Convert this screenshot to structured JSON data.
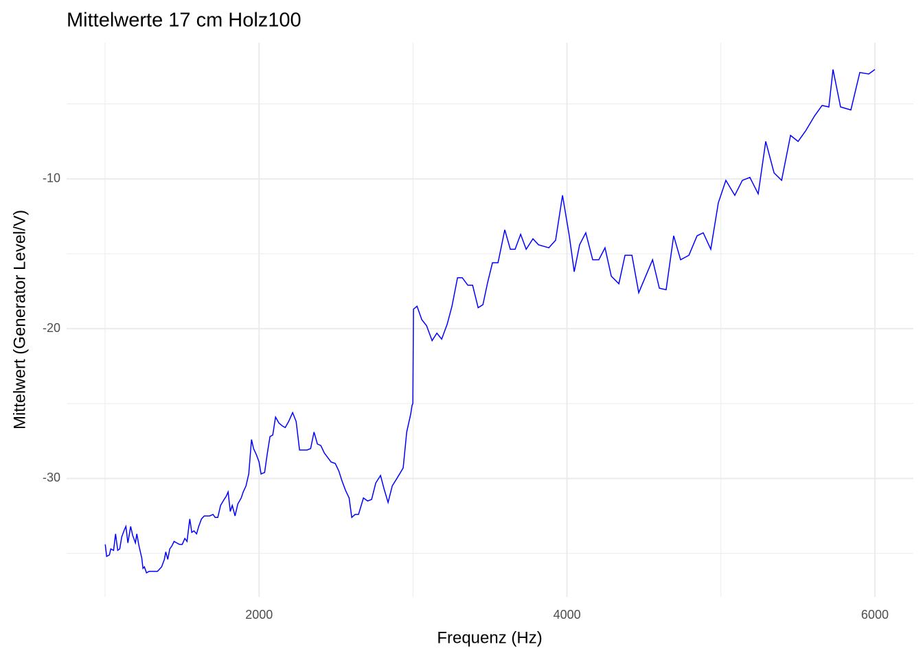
{
  "chart_data": {
    "type": "line",
    "title": "Mittelwerte 17 cm Holz100",
    "x_label": "Frequenz (Hz)",
    "y_label": "Mittelwert (Generator Level/V)",
    "xlim": [
      750,
      6250
    ],
    "ylim": [
      -37.9,
      -0.9
    ],
    "xticks": [
      2000,
      4000,
      6000
    ],
    "yticks": [
      -30,
      -20,
      -10
    ],
    "x_minor_grid": [
      1000,
      3000,
      5000
    ],
    "y_minor_grid": [
      -35,
      -25,
      -15,
      -5
    ],
    "grid": true,
    "x": [
      1001,
      1010,
      1028,
      1037,
      1055,
      1068,
      1082,
      1095,
      1108,
      1126,
      1135,
      1148,
      1166,
      1179,
      1197,
      1206,
      1220,
      1238,
      1246,
      1255,
      1269,
      1286,
      1304,
      1340,
      1367,
      1385,
      1394,
      1407,
      1420,
      1434,
      1448,
      1465,
      1483,
      1501,
      1518,
      1532,
      1550,
      1563,
      1577,
      1594,
      1608,
      1626,
      1644,
      1661,
      1679,
      1701,
      1715,
      1732,
      1750,
      1773,
      1786,
      1799,
      1813,
      1826,
      1844,
      1862,
      1884,
      1897,
      1915,
      1933,
      1951,
      1964,
      1982,
      2000,
      2013,
      2036,
      2054,
      2071,
      2089,
      2107,
      2129,
      2152,
      2170,
      2192,
      2218,
      2241,
      2263,
      2285,
      2312,
      2335,
      2357,
      2379,
      2401,
      2424,
      2446,
      2468,
      2495,
      2518,
      2540,
      2562,
      2585,
      2602,
      2624,
      2646,
      2678,
      2705,
      2731,
      2758,
      2789,
      2812,
      2838,
      2865,
      2901,
      2936,
      2959,
      2985,
      2994,
      2999,
      3003,
      3026,
      3057,
      3088,
      3124,
      3155,
      3186,
      3222,
      3253,
      3289,
      3320,
      3356,
      3387,
      3423,
      3454,
      3485,
      3516,
      3552,
      3596,
      3632,
      3663,
      3699,
      3735,
      3779,
      3815,
      3882,
      3926,
      3971,
      4015,
      4047,
      4082,
      4122,
      4167,
      4207,
      4247,
      4288,
      4337,
      4377,
      4422,
      4466,
      4511,
      4556,
      4600,
      4644,
      4693,
      4738,
      4792,
      4845,
      4885,
      4934,
      4983,
      5032,
      5090,
      5139,
      5188,
      5242,
      5291,
      5345,
      5394,
      5452,
      5501,
      5550,
      5608,
      5657,
      5701,
      5728,
      5777,
      5844,
      5902,
      5960,
      6000
    ],
    "series": [
      {
        "color": "#0000ff",
        "values": [
          -34.4,
          -35.2,
          -35.1,
          -34.7,
          -34.8,
          -33.7,
          -34.8,
          -34.7,
          -33.9,
          -33.4,
          -33.2,
          -34.3,
          -33.2,
          -33.8,
          -34.3,
          -33.7,
          -34.5,
          -35.3,
          -36.0,
          -35.9,
          -36.3,
          -36.2,
          -36.2,
          -36.2,
          -35.9,
          -35.4,
          -34.9,
          -35.4,
          -34.7,
          -34.5,
          -34.2,
          -34.3,
          -34.4,
          -34.4,
          -34.0,
          -34.2,
          -32.7,
          -33.6,
          -33.5,
          -33.7,
          -33.2,
          -32.7,
          -32.5,
          -32.5,
          -32.5,
          -32.4,
          -32.6,
          -32.6,
          -31.8,
          -31.4,
          -31.2,
          -30.9,
          -32.2,
          -31.8,
          -32.5,
          -31.7,
          -31.3,
          -30.9,
          -30.5,
          -29.7,
          -27.4,
          -28.0,
          -28.4,
          -28.9,
          -29.7,
          -29.6,
          -28.3,
          -27.2,
          -27.1,
          -25.9,
          -26.3,
          -26.5,
          -26.6,
          -26.2,
          -25.6,
          -26.2,
          -28.1,
          -28.1,
          -28.1,
          -28.0,
          -26.9,
          -27.7,
          -27.8,
          -28.3,
          -28.6,
          -28.9,
          -29.0,
          -29.5,
          -30.2,
          -30.8,
          -31.3,
          -32.6,
          -32.4,
          -32.4,
          -31.3,
          -31.5,
          -31.4,
          -30.3,
          -29.8,
          -30.7,
          -31.6,
          -30.5,
          -29.9,
          -29.3,
          -26.9,
          -25.7,
          -25.1,
          -25.0,
          -18.7,
          -18.5,
          -19.4,
          -19.8,
          -20.8,
          -20.3,
          -20.7,
          -19.7,
          -18.5,
          -16.6,
          -16.6,
          -17.1,
          -17.1,
          -18.6,
          -18.4,
          -16.9,
          -15.6,
          -15.6,
          -13.4,
          -14.7,
          -14.7,
          -13.7,
          -14.7,
          -14.0,
          -14.4,
          -14.6,
          -14.1,
          -11.1,
          -13.8,
          -16.2,
          -14.4,
          -13.6,
          -15.4,
          -15.4,
          -14.6,
          -16.5,
          -17.0,
          -15.1,
          -15.1,
          -17.6,
          -16.5,
          -15.4,
          -17.3,
          -17.4,
          -13.8,
          -15.4,
          -15.1,
          -13.8,
          -13.6,
          -14.7,
          -11.6,
          -10.1,
          -11.1,
          -10.1,
          -9.9,
          -11.0,
          -7.5,
          -9.6,
          -10.1,
          -7.1,
          -7.5,
          -6.8,
          -5.8,
          -5.1,
          -5.2,
          -2.7,
          -5.2,
          -5.4,
          -2.9,
          -3.0,
          -2.7
        ]
      }
    ]
  }
}
